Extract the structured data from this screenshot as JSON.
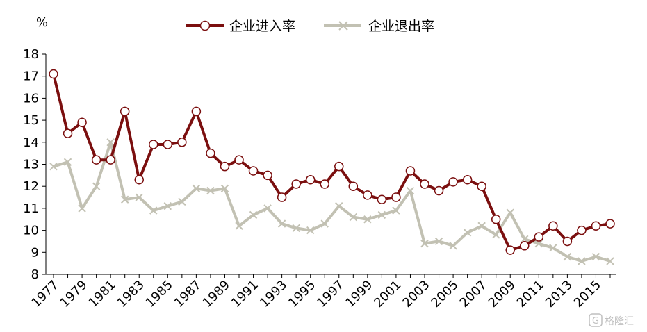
{
  "chart_data": {
    "type": "line",
    "unit_label": "%",
    "x": [
      1977,
      1978,
      1979,
      1980,
      1981,
      1982,
      1983,
      1984,
      1985,
      1986,
      1987,
      1988,
      1989,
      1990,
      1991,
      1992,
      1993,
      1994,
      1995,
      1996,
      1997,
      1998,
      1999,
      2000,
      2001,
      2002,
      2003,
      2004,
      2005,
      2006,
      2007,
      2008,
      2009,
      2010,
      2011,
      2012,
      2013,
      2014,
      2015,
      2016
    ],
    "x_tick_labels": [
      "1977",
      "1979",
      "1981",
      "1983",
      "1985",
      "1987",
      "1989",
      "1991",
      "1993",
      "1995",
      "1997",
      "1999",
      "2001",
      "2003",
      "2005",
      "2007",
      "2009",
      "2011",
      "2013",
      "2015"
    ],
    "ylim": [
      8,
      18
    ],
    "y_ticks": [
      8,
      9,
      10,
      11,
      12,
      13,
      14,
      15,
      16,
      17,
      18
    ],
    "grid": false,
    "legend_position": "top-center",
    "series": [
      {
        "name": "企业进入率",
        "color": "#7b0f0f",
        "marker": "circle",
        "values": [
          17.1,
          14.4,
          14.9,
          13.2,
          13.2,
          15.4,
          12.3,
          13.9,
          13.9,
          14.0,
          15.4,
          13.5,
          12.9,
          13.2,
          12.7,
          12.5,
          11.5,
          12.1,
          12.3,
          12.1,
          12.9,
          12.0,
          11.6,
          11.4,
          11.5,
          12.7,
          12.1,
          11.8,
          12.2,
          12.3,
          12.0,
          10.5,
          9.1,
          9.3,
          9.7,
          10.2,
          9.5,
          10.0,
          10.2,
          10.3
        ]
      },
      {
        "name": "企业退出率",
        "color": "#c2c1b3",
        "marker": "x",
        "values": [
          12.9,
          13.1,
          11.0,
          12.0,
          14.0,
          11.4,
          11.5,
          10.9,
          11.1,
          11.3,
          11.9,
          11.8,
          11.9,
          10.2,
          10.7,
          11.0,
          10.3,
          10.1,
          10.0,
          10.3,
          11.1,
          10.6,
          10.5,
          10.7,
          10.9,
          11.8,
          9.4,
          9.5,
          9.3,
          9.9,
          10.2,
          9.8,
          10.8,
          9.6,
          9.4,
          9.2,
          8.8,
          8.6,
          8.8,
          8.6
        ]
      }
    ]
  },
  "watermark": {
    "text": "格隆汇",
    "icon": "g-logo-icon"
  }
}
